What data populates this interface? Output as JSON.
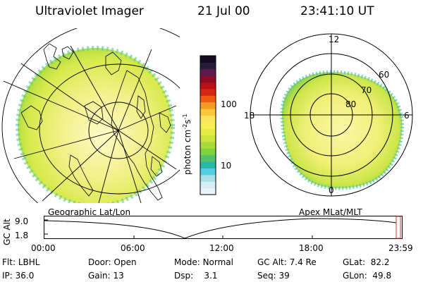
{
  "header": {
    "instrument": "Ultraviolet Imager",
    "date": "21 Jul 00",
    "time": "23:41:10 UT"
  },
  "colorbar": {
    "unit": "photon cm",
    "unit_exp": "-2",
    "unit_s": "s",
    "unit_s_exp": "-1",
    "ticks": [
      "100",
      "10"
    ],
    "colors": [
      "#e9f5f8",
      "#d5eef3",
      "#a9e0e8",
      "#52cfe1",
      "#28b8a8",
      "#52c36a",
      "#7ed23c",
      "#a7dc39",
      "#cbe53d",
      "#e4ec45",
      "#f5ee54",
      "#fbe35a",
      "#fbc73b",
      "#f79b20",
      "#ee5a14",
      "#d82412",
      "#b80f18",
      "#8e0c2a",
      "#5b1a4b",
      "#2a1a3b",
      "#120c20"
    ]
  },
  "left_map": {
    "label": "Geographic Lat/Lon"
  },
  "right_map": {
    "label": "Apex MLat/MLT",
    "mlt_labels": {
      "top": "12",
      "left": "18",
      "right": "6",
      "bottom": "0"
    },
    "lat_labels": [
      "60",
      "70",
      "80"
    ]
  },
  "timeline": {
    "ylabel": "GC Alt",
    "yticks": [
      "9.0",
      "1.8"
    ],
    "xticks": [
      "00:00",
      "06:00",
      "12:00",
      "18:00",
      "23:59"
    ]
  },
  "info": {
    "flt_label": "Flt:",
    "flt_value": "LBHL",
    "ip_label": "IP:",
    "ip_value": "36.0",
    "door_label": "Door:",
    "door_value": "Open",
    "gain_label": "Gain:",
    "gain_value": "13",
    "mode_label": "Mode:",
    "mode_value": "Normal",
    "dsp_label": "Dsp:",
    "dsp_value": "3.1",
    "gcalt_label": "GC Alt:",
    "gcalt_value": "7.4 Re",
    "seq_label": "Seq:",
    "seq_value": "39",
    "glat_label": "GLat:",
    "glat_value": "82.2",
    "glon_label": "GLon:",
    "glon_value": "49.8"
  }
}
